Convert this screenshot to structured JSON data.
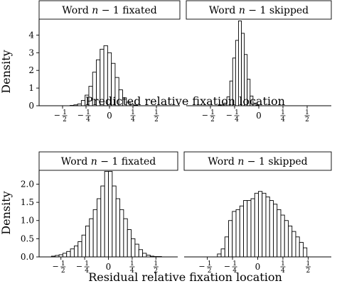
{
  "chart_data": [
    {
      "type": "histogram",
      "row": "top",
      "xlabel": "Predicted relative fixation location",
      "ylabel": "Density",
      "xlim": [
        -0.75,
        0.75
      ],
      "ylim": [
        0,
        4.9
      ],
      "yticks": [
        "0",
        "1",
        "2",
        "3",
        "4"
      ],
      "xticks": [
        {
          "value": -0.5,
          "sign": "−",
          "num": "1",
          "den": "2"
        },
        {
          "value": -0.25,
          "sign": "−",
          "num": "1",
          "den": "4"
        },
        {
          "value": 0,
          "label": "0"
        },
        {
          "value": 0.25,
          "sign": "",
          "num": "1",
          "den": "4"
        },
        {
          "value": 0.5,
          "sign": "",
          "num": "1",
          "den": "2"
        }
      ],
      "panels": [
        {
          "title": "Word n − 1 fixated",
          "title_parts": [
            "Word ",
            "n",
            " − 1 fixated"
          ],
          "bin_start": -0.42,
          "bin_width": 0.04,
          "values": [
            0.02,
            0.05,
            0.1,
            0.3,
            0.6,
            1.1,
            1.9,
            2.6,
            3.2,
            3.4,
            3.0,
            2.4,
            1.6,
            0.9,
            0.45,
            0.2,
            0.08,
            0.03
          ]
        },
        {
          "title": "Word n − 1 skipped",
          "title_parts": [
            "Word ",
            "n",
            " − 1 skipped"
          ],
          "bin_start": -0.42,
          "bin_width": 0.03,
          "values": [
            0.02,
            0.05,
            0.15,
            0.5,
            1.4,
            2.7,
            3.7,
            4.8,
            4.1,
            2.9,
            1.5,
            0.55,
            0.15,
            0.04
          ]
        }
      ]
    },
    {
      "type": "histogram",
      "row": "bottom",
      "xlabel": "Residual relative fixation location",
      "ylabel": "Density",
      "xlim": [
        -0.73,
        0.73
      ],
      "ylim": [
        0,
        2.38
      ],
      "yticks": [
        "0.0",
        "0.5",
        "1.0",
        "1.5",
        "2.0"
      ],
      "xticks": [
        {
          "value": -0.5,
          "sign": "−",
          "num": "1",
          "den": "2"
        },
        {
          "value": -0.25,
          "sign": "−",
          "num": "1",
          "den": "4"
        },
        {
          "value": 0,
          "label": "0"
        },
        {
          "value": 0.25,
          "sign": "",
          "num": "1",
          "den": "4"
        },
        {
          "value": 0.5,
          "sign": "",
          "num": "1",
          "den": "2"
        }
      ],
      "panels": [
        {
          "title": "Word n − 1 fixated",
          "title_parts": [
            "Word ",
            "n",
            " − 1 fixated"
          ],
          "bin_start": -0.6,
          "bin_width": 0.04,
          "values": [
            0.02,
            0.04,
            0.06,
            0.1,
            0.15,
            0.22,
            0.3,
            0.42,
            0.6,
            0.85,
            1.05,
            1.3,
            1.6,
            1.95,
            2.35,
            2.35,
            1.95,
            1.6,
            1.3,
            1.05,
            0.75,
            0.5,
            0.35,
            0.2,
            0.1,
            0.05,
            0.02,
            0.01,
            0.01
          ]
        },
        {
          "title": "Word n − 1 skipped",
          "title_parts": [
            "Word ",
            "n",
            " − 1 skipped"
          ],
          "bin_start": -0.4,
          "bin_width": 0.037,
          "values": [
            0.08,
            0.22,
            0.55,
            1.0,
            1.25,
            1.3,
            1.4,
            1.55,
            1.55,
            1.6,
            1.75,
            1.8,
            1.75,
            1.65,
            1.55,
            1.45,
            1.3,
            1.15,
            1.0,
            0.85,
            0.7,
            0.55,
            0.4,
            0.25
          ]
        }
      ]
    }
  ]
}
